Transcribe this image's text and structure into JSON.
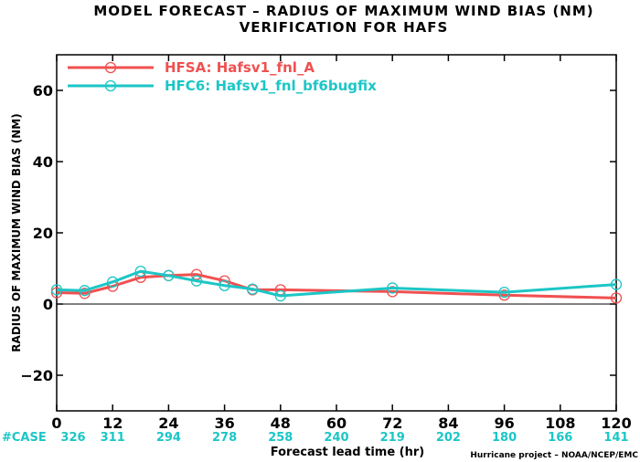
{
  "chart_data": {
    "type": "line",
    "title": "MODEL FORECAST – RADIUS OF MAXIMUM WIND BIAS (NM)",
    "subtitle": "VERIFICATION FOR HAFS",
    "xlabel": "Forecast lead time (hr)",
    "ylabel": "RADIUS OF MAXIMUM WIND BIAS (NM)",
    "xlim": [
      0,
      120
    ],
    "ylim": [
      -30,
      70
    ],
    "xticks": [
      0,
      12,
      24,
      36,
      48,
      60,
      72,
      84,
      96,
      108,
      120
    ],
    "yticks": [
      -20,
      0,
      20,
      40,
      60
    ],
    "zero_line": true,
    "legend_position": "top-left",
    "series": [
      {
        "name": "HFSA: Hafsv1_fnl_A",
        "color": "#f05050",
        "points": [
          {
            "x": 0,
            "y": 3.2
          },
          {
            "x": 6,
            "y": 3.0
          },
          {
            "x": 12,
            "y": 5.0
          },
          {
            "x": 18,
            "y": 7.5
          },
          {
            "x": 24,
            "y": 8.0
          },
          {
            "x": 30,
            "y": 8.3
          },
          {
            "x": 36,
            "y": 6.5
          },
          {
            "x": 42,
            "y": 4.0
          },
          {
            "x": 48,
            "y": 4.0
          },
          {
            "x": 72,
            "y": 3.5
          },
          {
            "x": 96,
            "y": 2.5
          },
          {
            "x": 120,
            "y": 1.7
          }
        ]
      },
      {
        "name": "HFC6: Hafsv1_fnl_bf6bugfix",
        "color": "#1cc6c6",
        "points": [
          {
            "x": 0,
            "y": 4.0
          },
          {
            "x": 6,
            "y": 3.8
          },
          {
            "x": 12,
            "y": 6.2
          },
          {
            "x": 18,
            "y": 9.2
          },
          {
            "x": 24,
            "y": 8.0
          },
          {
            "x": 30,
            "y": 6.5
          },
          {
            "x": 36,
            "y": 5.2
          },
          {
            "x": 42,
            "y": 4.2
          },
          {
            "x": 48,
            "y": 2.3
          },
          {
            "x": 72,
            "y": 4.5
          },
          {
            "x": 96,
            "y": 3.3
          },
          {
            "x": 120,
            "y": 5.5
          }
        ]
      }
    ],
    "case_label": "#CASE",
    "cases": [
      {
        "x": 0,
        "n": "326"
      },
      {
        "x": 12,
        "n": "311"
      },
      {
        "x": 24,
        "n": "294"
      },
      {
        "x": 36,
        "n": "278"
      },
      {
        "x": 48,
        "n": "258"
      },
      {
        "x": 60,
        "n": "240"
      },
      {
        "x": 72,
        "n": "219"
      },
      {
        "x": 84,
        "n": "202"
      },
      {
        "x": 96,
        "n": "180"
      },
      {
        "x": 108,
        "n": "166"
      },
      {
        "x": 120,
        "n": "141"
      }
    ],
    "credit": "Hurricane project – NOAA/NCEP/EMC"
  }
}
